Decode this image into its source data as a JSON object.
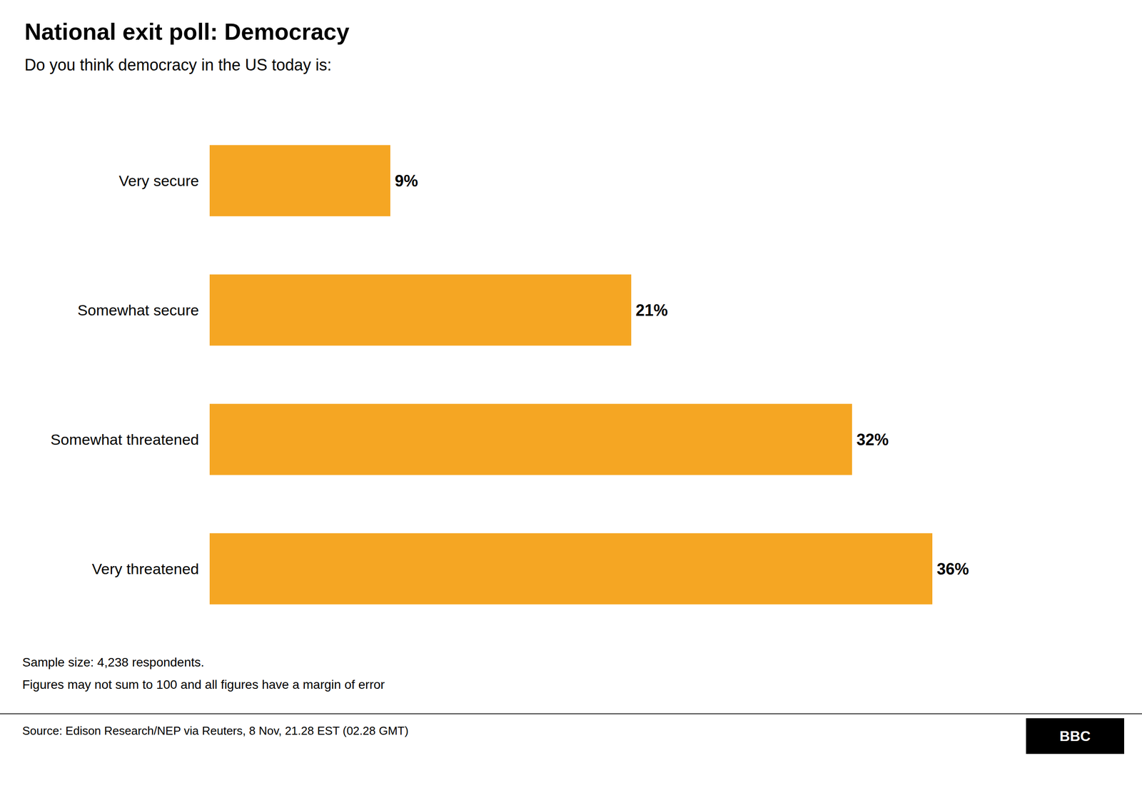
{
  "chart_data": {
    "type": "bar",
    "orientation": "horizontal",
    "title": "National exit poll: Democracy",
    "subtitle": "Do you think democracy in the US today is:",
    "categories": [
      "Very secure",
      "Somewhat secure",
      "Somewhat threatened",
      "Very threatened"
    ],
    "values": [
      9,
      21,
      32,
      36
    ],
    "value_labels": [
      "9%",
      "21%",
      "32%",
      "36%"
    ],
    "data_labels": true,
    "color": "#F5A623",
    "xlim": [
      0,
      42
    ],
    "tick_labels": "y",
    "grid": false,
    "footnotes": [
      "Sample size: 4,238 respondents.",
      "Figures may not sum to 100 and all figures have a margin of error"
    ],
    "source": "Source: Edison Research/NEP via Reuters, 8 Nov, 21.28 EST (02.28 GMT)",
    "annotations": [
      "BBC"
    ]
  }
}
